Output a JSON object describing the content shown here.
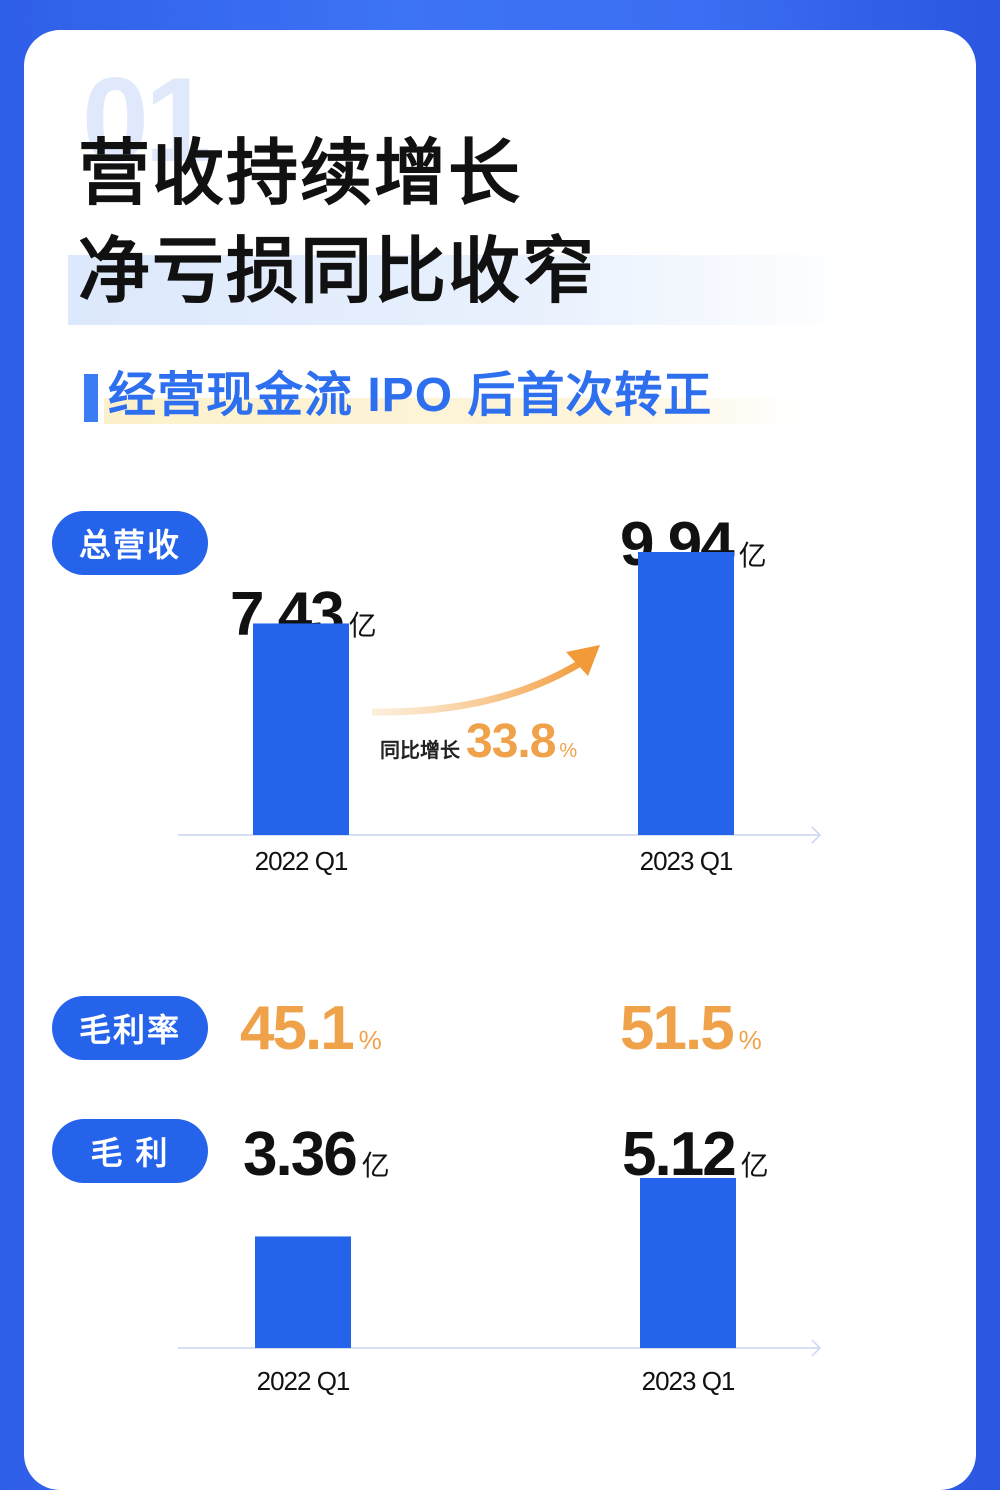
{
  "background_number": "01",
  "title": {
    "line1": "营收持续增长",
    "line2": "净亏损同比收窄"
  },
  "subtitle": "经营现金流 IPO 后首次转正",
  "colors": {
    "bar": "#2563eb",
    "accent_orange": "#f0a24a",
    "background_blue": "#3b6ef2"
  },
  "revenue": {
    "pill": "总营收",
    "growth_label": "同比增长",
    "growth_value": "33.8",
    "growth_unit": "%"
  },
  "gross_margin": {
    "pill": "毛利率",
    "values": [
      "45.1",
      "51.5"
    ],
    "unit": "%"
  },
  "gross_profit": {
    "pill": "毛 利"
  },
  "chart_data": [
    {
      "type": "bar",
      "categories": [
        "2022 Q1",
        "2023 Q1"
      ],
      "values": [
        7.43,
        9.94
      ],
      "value_labels": [
        "7.43",
        "9.94"
      ],
      "unit": "亿",
      "ylim": [
        0,
        10.5
      ]
    },
    {
      "type": "bar",
      "categories": [
        "2022 Q1",
        "2023 Q1"
      ],
      "values": [
        3.36,
        5.12
      ],
      "value_labels": [
        "3.36",
        "5.12"
      ],
      "unit": "亿",
      "ylim": [
        0,
        11.5
      ]
    }
  ]
}
